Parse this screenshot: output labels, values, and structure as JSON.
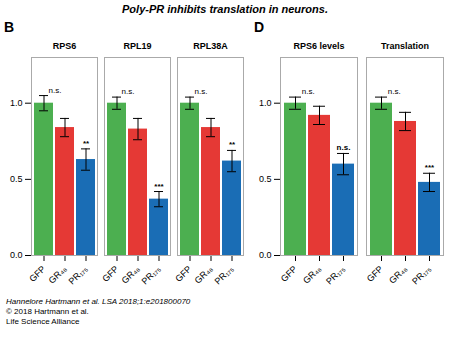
{
  "title": "Poly-PR inhibits translation in neurons.",
  "annotations": [
    "Hannelore Hartmann et al. LSA 2018;1:e201800070",
    "© 2018 Hartmann et al.",
    "Life Science Alliance"
  ],
  "chart_data": [
    {
      "type": "bar",
      "title": "B",
      "categories": [
        "RPS6",
        "RPL19",
        "RPL38A"
      ],
      "series": [
        {
          "name": "GFP",
          "color": "#4CAF50",
          "values": [
            1.0,
            1.0,
            1.0
          ],
          "errors": [
            0.05,
            0.04,
            0.04
          ]
        },
        {
          "name": "GR₄₈",
          "color": "#E53935",
          "values": [
            0.84,
            0.83,
            0.84
          ],
          "errors": [
            0.06,
            0.07,
            0.06
          ],
          "significance": [
            "n.s.",
            "n.s.",
            "n.s."
          ]
        },
        {
          "name": "PR₁₇₅",
          "color": "#1A6DB5",
          "values": [
            0.63,
            0.37,
            0.62
          ],
          "errors": [
            0.07,
            0.05,
            0.07
          ],
          "significance": [
            "**",
            "***",
            "**"
          ]
        }
      ],
      "ylim": [
        0.0,
        1.3
      ],
      "yticks": [
        {
          "value": 0.0,
          "label": "0.0"
        },
        {
          "value": 0.5,
          "label": "0.5"
        },
        {
          "value": 1.0,
          "label": "1.0"
        }
      ],
      "grid": false
    },
    {
      "type": "bar",
      "title": "D",
      "categories": [
        "RPS6 levels",
        "Translation"
      ],
      "series": [
        {
          "name": "GFP",
          "color": "#4CAF50",
          "values": [
            1.0,
            1.0
          ],
          "errors": [
            0.04,
            0.04
          ]
        },
        {
          "name": "GR₄₈",
          "color": "#E53935",
          "values": [
            0.92,
            0.88
          ],
          "errors": [
            0.06,
            0.06
          ],
          "significance": [
            "n.s.",
            "n.s."
          ]
        },
        {
          "name": "PR₁₇₅",
          "color": "#1A6DB5",
          "values": [
            0.6,
            0.48
          ],
          "errors": [
            0.07,
            0.06
          ],
          "significance": [
            "n.s.",
            "***"
          ]
        }
      ],
      "ylim": [
        0.0,
        1.3
      ],
      "yticks": [
        {
          "value": 0.0,
          "label": "0.0"
        },
        {
          "value": 0.5,
          "label": "0.5"
        },
        {
          "value": 1.0,
          "label": "1.0"
        }
      ],
      "grid": false
    }
  ]
}
